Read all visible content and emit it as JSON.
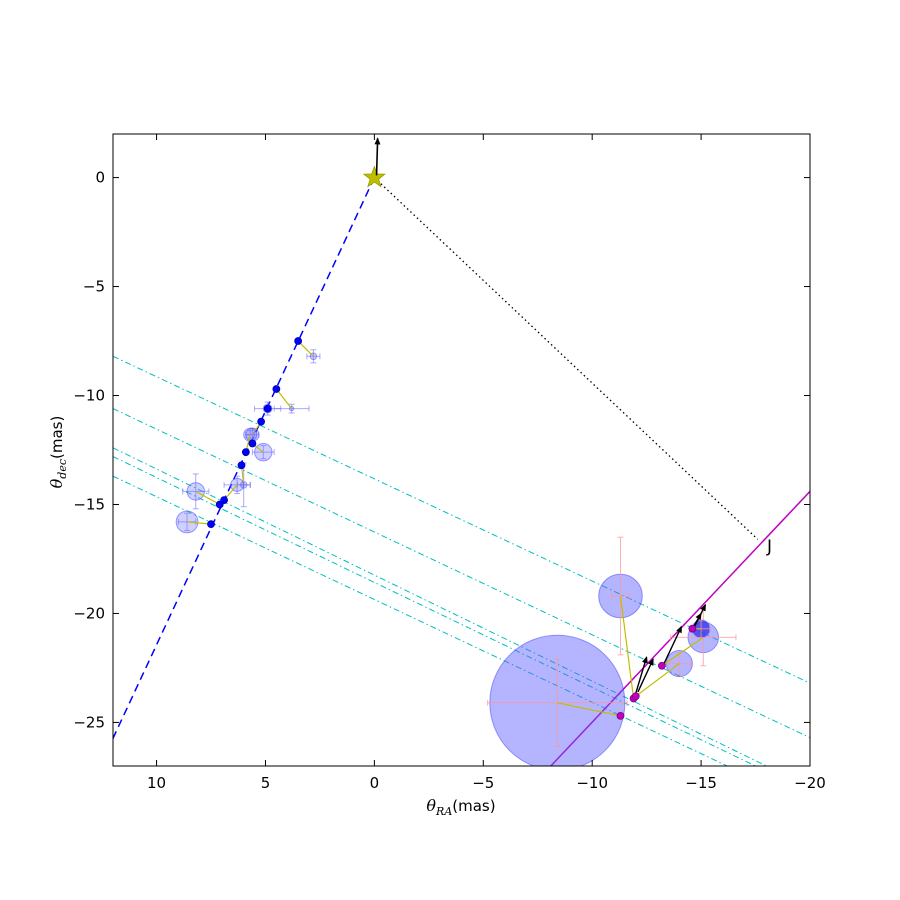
{
  "chart_data": {
    "type": "scatter",
    "title": "",
    "xlabel": {
      "symbol": "θ",
      "sub": "RA",
      "unit": "(mas)"
    },
    "ylabel": {
      "symbol": "θ",
      "sub": "dec",
      "unit": "(mas)"
    },
    "xlim": [
      12,
      -20
    ],
    "ylim": [
      -27,
      2
    ],
    "x_ticks": [
      10,
      5,
      0,
      -5,
      -10,
      -15,
      -20
    ],
    "x_tick_labels": [
      "10",
      "5",
      "0",
      "−5",
      "−10",
      "−15",
      "−20"
    ],
    "y_ticks": [
      0,
      -5,
      -10,
      -15,
      -20,
      -25
    ],
    "y_tick_labels": [
      "0",
      "−5",
      "−10",
      "−15",
      "−20",
      "−25"
    ],
    "grid": false,
    "annotation": {
      "text": "J",
      "x": -18.3,
      "y": -16.9
    },
    "core": {
      "x": 0,
      "y": 0,
      "color": "#bfbf00"
    },
    "core_vector": {
      "x1": -0.1,
      "y1": 0.1,
      "x2": -0.15,
      "y2": 1.8,
      "color": "#000000"
    },
    "jet_axis": {
      "x1": 0,
      "y1": 0,
      "x2": 12.5,
      "y2": -26.8,
      "color": "#0000ff",
      "style": "dashed"
    },
    "jet_j_line": {
      "x1": 0,
      "y1": 0,
      "x2": -17.6,
      "y2": -16.6,
      "color": "#000000",
      "style": "dotted"
    },
    "magenta_line": {
      "x1": -8.1,
      "y1": -27,
      "x2": -20,
      "y2": -14.4,
      "color": "#bf00bf"
    },
    "dashdot_lines": [
      {
        "x1": 12,
        "y1": -8.2,
        "x2": -20,
        "y2": -23.2
      },
      {
        "x1": 12,
        "y1": -10.6,
        "x2": -20,
        "y2": -25.7
      },
      {
        "x1": 12,
        "y1": -12.4,
        "x2": -18,
        "y2": -27
      },
      {
        "x1": 12,
        "y1": -12.8,
        "x2": -17.5,
        "y2": -27
      },
      {
        "x1": 12,
        "y1": -13.7,
        "x2": -16.2,
        "y2": -27
      }
    ],
    "series": [
      {
        "color": "#0000ff",
        "points": [
          {
            "x": 3.5,
            "y": -7.5,
            "mx": 2.8,
            "my": -8.2,
            "r": 0.15,
            "ex": 0.3,
            "ey": 0.3
          },
          {
            "x": 4.5,
            "y": -9.7,
            "mx": 3.8,
            "my": -10.6,
            "r": 0.1,
            "ex": 0.8,
            "ey": 0.2
          },
          {
            "x": 4.9,
            "y": -10.6,
            "mx": 4.9,
            "my": -10.6,
            "r": 0.2,
            "ex": 0.6,
            "ey": 0.3
          },
          {
            "x": 5.2,
            "y": -11.2,
            "mx": 5.6,
            "my": -11.8,
            "r": 0.3,
            "ex": 0.3,
            "ey": 0.3
          },
          {
            "x": 5.6,
            "y": -12.2,
            "mx": 5.1,
            "my": -12.6,
            "r": 0.4,
            "ex": 0.5,
            "ey": 0.3
          },
          {
            "x": 5.9,
            "y": -12.6,
            "mx": 5.7,
            "my": -11.8,
            "r": 0.3,
            "ex": 0.2,
            "ey": 0.2
          },
          {
            "x": 6.1,
            "y": -13.2,
            "mx": 6.0,
            "my": -14.1,
            "r": 0.15,
            "ex": 0.3,
            "ey": 1.0
          },
          {
            "x": 6.9,
            "y": -14.8,
            "mx": 6.3,
            "my": -14.1,
            "r": 0.3,
            "ex": 0.6,
            "ey": 0.4
          },
          {
            "x": 7.1,
            "y": -15.0,
            "mx": 8.2,
            "my": -14.4,
            "r": 0.4,
            "ex": 0.6,
            "ey": 0.8
          },
          {
            "x": 7.5,
            "y": -15.9,
            "mx": 8.6,
            "my": -15.8,
            "r": 0.5,
            "ex": 0.4,
            "ey": 0.4
          }
        ]
      },
      {
        "color": "#bf00bf",
        "points": [
          {
            "x": -11.3,
            "y": -24.7,
            "mx": -8.4,
            "my": -24.1,
            "r": 3.1,
            "ex": 3.2,
            "ey": 2.0
          },
          {
            "x": -11.9,
            "y": -23.9,
            "mx": -11.3,
            "my": -19.2,
            "r": 1.0,
            "ex": 0.4,
            "ey": 2.7
          },
          {
            "x": -12.0,
            "y": -23.8,
            "mx": -14.0,
            "my": -22.3,
            "r": 0.6,
            "ex": 0.5,
            "ey": 0.5
          },
          {
            "x": -13.2,
            "y": -22.4,
            "mx": -15.1,
            "my": -21.1,
            "r": 0.7,
            "ex": 1.5,
            "ey": 1.3
          },
          {
            "x": -14.6,
            "y": -20.7,
            "mx": -15.0,
            "my": -20.7,
            "r": 0.4,
            "ex": 0.4,
            "ey": 0.4
          }
        ]
      }
    ],
    "velocity_vectors": [
      {
        "x1": -11.9,
        "y1": -24.0,
        "x2": -12.5,
        "y2": -22.0
      },
      {
        "x1": -12.1,
        "y1": -23.6,
        "x2": -12.8,
        "y2": -22.1
      },
      {
        "x1": -13.3,
        "y1": -22.3,
        "x2": -14.1,
        "y2": -20.6
      },
      {
        "x1": -14.7,
        "y1": -20.6,
        "x2": -15.2,
        "y2": -19.6
      },
      {
        "x1": -14.6,
        "y1": -20.7,
        "x2": -15.0,
        "y2": -20.0
      }
    ]
  }
}
